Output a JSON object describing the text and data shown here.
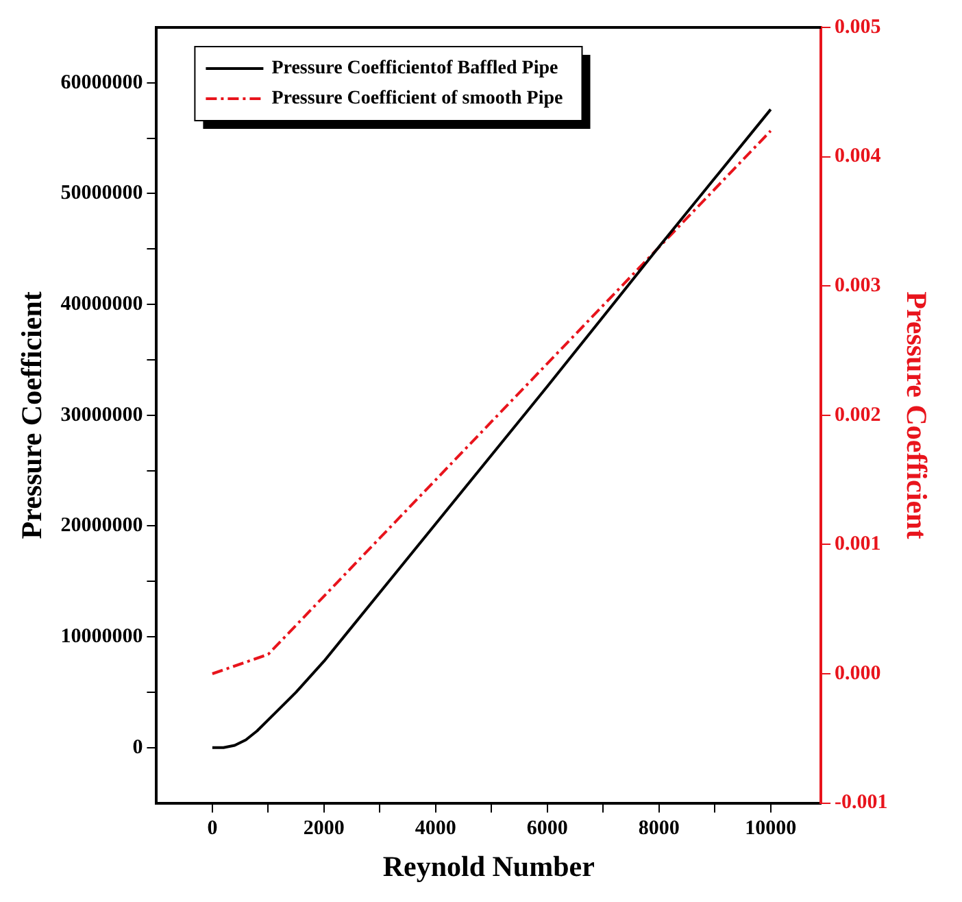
{
  "chart_data": {
    "type": "line",
    "xlabel": "Reynold Number",
    "ylabel": "Pressure Coefficient",
    "y2label": "Pressure Coefficient",
    "xlim": [
      -1000,
      10900
    ],
    "xticks": [
      0,
      {
        "value": 1000,
        "label": null
      },
      2000,
      {
        "value": 3000,
        "label": null
      },
      4000,
      {
        "value": 5000,
        "label": null
      },
      6000,
      {
        "value": 7000,
        "label": null
      },
      8000,
      {
        "value": 9000,
        "label": null
      },
      10000
    ],
    "ylim": [
      -5000000,
      65000000
    ],
    "yticks": [
      0,
      {
        "value": 5000000,
        "label": null
      },
      10000000,
      {
        "value": 15000000,
        "label": null
      },
      20000000,
      {
        "value": 25000000,
        "label": null
      },
      30000000,
      {
        "value": 35000000,
        "label": null
      },
      40000000,
      {
        "value": 45000000,
        "label": null
      },
      50000000,
      {
        "value": 55000000,
        "label": null
      },
      60000000
    ],
    "y2lim": [
      -0.001,
      0.005
    ],
    "y2ticks": [
      {
        "value": -0.001,
        "label": "-0.001"
      },
      {
        "value": 0,
        "label": "0.000"
      },
      {
        "value": 0.001,
        "label": "0.001"
      },
      {
        "value": 0.002,
        "label": "0.002"
      },
      {
        "value": 0.003,
        "label": "0.003"
      },
      {
        "value": 0.004,
        "label": "0.004"
      },
      {
        "value": 0.005,
        "label": "0.005"
      }
    ],
    "grid": false,
    "legend": "top left",
    "marker": "none",
    "series": [
      {
        "name": "Pressure Coefficientof Baffled Pipe",
        "color": "#000000",
        "line_style": "solid",
        "x": [
          0,
          200,
          400,
          600,
          800,
          1000,
          1500,
          2000,
          3000,
          4000,
          5000,
          6000,
          7000,
          8000,
          9000,
          10000
        ],
        "values": [
          0,
          0,
          200000,
          700000,
          1500000,
          2500000,
          5000000,
          7800000,
          14000000,
          20200000,
          26400000,
          32600000,
          38900000,
          45200000,
          51400000,
          57600000
        ]
      },
      {
        "name": "Pressure Coefficient of smooth Pipe",
        "color": "#e8141c",
        "line_style": "dashed",
        "axis": "y2",
        "x": [
          0,
          1000,
          2000,
          3000,
          4000,
          5000,
          6000,
          7000,
          8000,
          9000,
          10000
        ],
        "values": [
          0,
          0.00015,
          0.0006,
          0.00105,
          0.0015,
          0.00195,
          0.0024,
          0.00285,
          0.0033,
          0.00375,
          0.0042
        ]
      }
    ]
  }
}
